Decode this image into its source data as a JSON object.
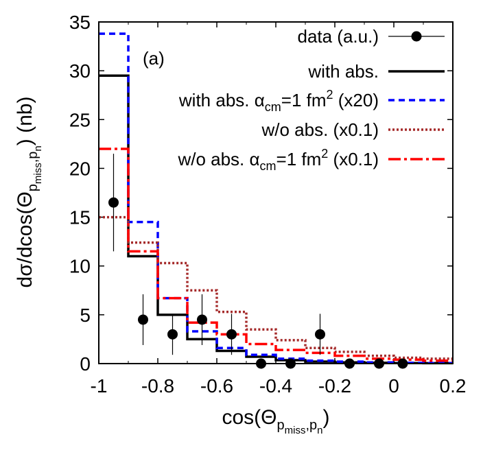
{
  "chart_data": {
    "type": "line",
    "panel_label": "(a)",
    "xlabel": {
      "base": "cos(Θ",
      "sub1": "p",
      "sub2": "miss",
      "tail": ",p",
      "sub3": "n",
      "close": ")"
    },
    "ylabel": {
      "base": "dσ/dcos(Θ",
      "sub1": "p",
      "sub2": "miss",
      "tail": ",p",
      "sub3": "n",
      "close": ") (nb)"
    },
    "xlim": [
      -1,
      0.2
    ],
    "ylim": [
      0,
      35
    ],
    "x_ticks": [
      -1,
      -0.8,
      -0.6,
      -0.4,
      -0.2,
      0,
      0.2
    ],
    "x_tick_labels": [
      "-1",
      "-0.8",
      "-0.6",
      "-0.4",
      "-0.2",
      "0",
      "0.2"
    ],
    "y_ticks": [
      0,
      5,
      10,
      15,
      20,
      25,
      30,
      35
    ],
    "y_tick_labels": [
      "0",
      "5",
      "10",
      "15",
      "20",
      "25",
      "30",
      "35"
    ],
    "bin_edges": [
      -1.0,
      -0.9,
      -0.8,
      -0.7,
      -0.6,
      -0.5,
      -0.4,
      -0.3,
      -0.2,
      -0.1,
      0.0,
      0.1,
      0.2
    ],
    "series": [
      {
        "name": "data (a.u.)",
        "kind": "points",
        "color": "#000000",
        "x": [
          -0.95,
          -0.85,
          -0.75,
          -0.65,
          -0.55,
          -0.45,
          -0.35,
          -0.25,
          -0.15,
          -0.05,
          0.03
        ],
        "y": [
          16.5,
          4.5,
          3.0,
          4.5,
          3.0,
          0.0,
          0.0,
          3.0,
          0.0,
          0.0,
          0.0
        ],
        "err": [
          5.0,
          2.6,
          2.1,
          2.6,
          2.1,
          0.0,
          0.0,
          2.1,
          0.0,
          0.0,
          0.0
        ]
      },
      {
        "name": "with abs.",
        "kind": "step",
        "color": "#000000",
        "dash": "",
        "values": [
          29.5,
          11.0,
          5.0,
          2.5,
          1.3,
          0.7,
          0.35,
          0.2,
          0.12,
          0.08,
          0.05,
          0.04
        ]
      },
      {
        "name": "with abs. α_cm=1 fm² (x20)",
        "kind": "step",
        "color": "#0000ff",
        "dash": "9,6",
        "values": [
          33.8,
          14.5,
          6.7,
          3.3,
          1.6,
          0.9,
          0.5,
          0.3,
          0.2,
          0.12,
          0.08,
          0.05
        ]
      },
      {
        "name": "w/o abs. (x0.1)",
        "kind": "step",
        "color": "#a52a2a",
        "dash": "3,3",
        "values": [
          15.0,
          12.4,
          10.3,
          7.5,
          5.3,
          3.5,
          2.4,
          1.6,
          1.2,
          0.8,
          0.6,
          0.5
        ]
      },
      {
        "name": "w/o abs. α_cm=1 fm² (x0.1)",
        "kind": "step",
        "color": "#ff0000",
        "dash": "18,5,4,5",
        "values": [
          22.0,
          11.5,
          6.7,
          4.2,
          3.0,
          2.0,
          1.4,
          1.1,
          0.8,
          0.5,
          0.4,
          0.3
        ]
      }
    ],
    "legend": {
      "placement": "top-right",
      "entries": [
        {
          "text": "data (a.u.)"
        },
        {
          "text": "with abs."
        },
        {
          "pre": "with abs. α",
          "sub": "cm",
          "mid": "=1 fm",
          "sup": "2",
          "post": " (x20)"
        },
        {
          "text": "w/o abs. (x0.1)"
        },
        {
          "pre": "w/o abs. α",
          "sub": "cm",
          "mid": "=1 fm",
          "sup": "2",
          "post": " (x0.1)"
        }
      ]
    }
  }
}
